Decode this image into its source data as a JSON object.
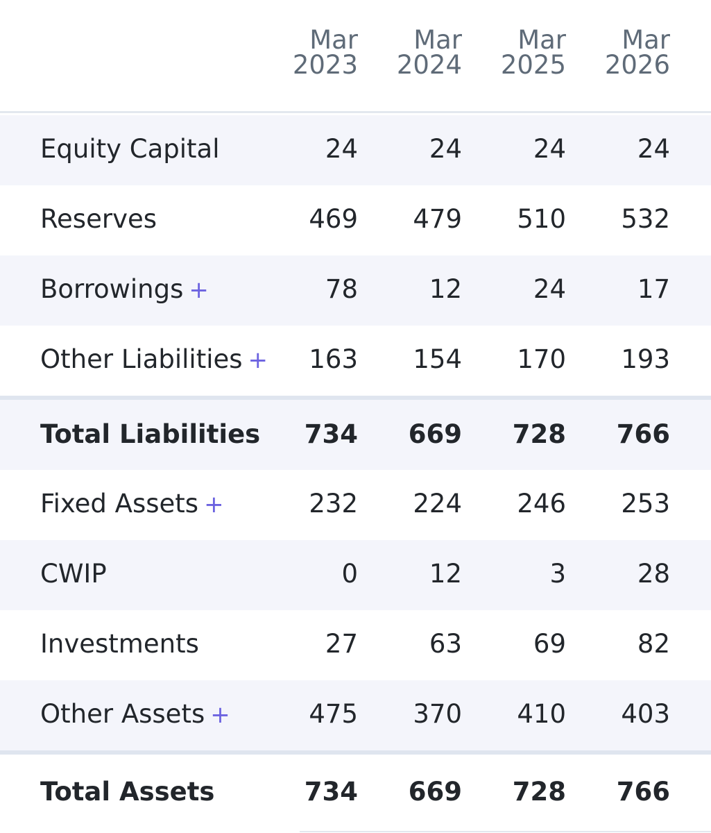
{
  "columns": [
    {
      "month": "Mar",
      "year": "2023"
    },
    {
      "month": "Mar",
      "year": "2024"
    },
    {
      "month": "Mar",
      "year": "2025"
    },
    {
      "month": "Mar",
      "year": "2026"
    }
  ],
  "expand_symbol": "+",
  "rows": [
    {
      "label": "Equity Capital",
      "values": [
        "24",
        "24",
        "24",
        "24"
      ]
    },
    {
      "label": "Reserves",
      "values": [
        "469",
        "479",
        "510",
        "532"
      ]
    },
    {
      "label": "Borrowings",
      "values": [
        "78",
        "12",
        "24",
        "17"
      ]
    },
    {
      "label": "Other Liabilities",
      "values": [
        "163",
        "154",
        "170",
        "193"
      ]
    },
    {
      "label": "Total Liabilities",
      "values": [
        "734",
        "669",
        "728",
        "766"
      ]
    },
    {
      "label": "Fixed Assets",
      "values": [
        "232",
        "224",
        "246",
        "253"
      ]
    },
    {
      "label": "CWIP",
      "values": [
        "0",
        "12",
        "3",
        "28"
      ]
    },
    {
      "label": "Investments",
      "values": [
        "27",
        "63",
        "69",
        "82"
      ]
    },
    {
      "label": "Other Assets",
      "values": [
        "475",
        "370",
        "410",
        "403"
      ]
    },
    {
      "label": "Total Assets",
      "values": [
        "734",
        "669",
        "728",
        "766"
      ]
    }
  ]
}
